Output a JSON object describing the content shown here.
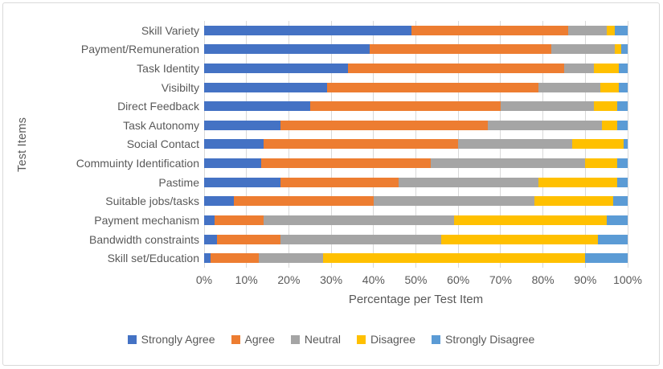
{
  "frame": {
    "background": "#FFFFFF",
    "border_color": "#D9D9D9"
  },
  "chart_data": {
    "type": "bar",
    "orientation": "horizontal",
    "stacked": true,
    "stacked_total": 100,
    "title": "",
    "xlabel": "Percentage per Test Item",
    "ylabel": "Test Items",
    "xlim": [
      0,
      100
    ],
    "x_ticks": [
      "0%",
      "10%",
      "20%",
      "30%",
      "40%",
      "50%",
      "60%",
      "70%",
      "80%",
      "90%",
      "100%"
    ],
    "grid": "vertical",
    "gridline_color": "#D9D9D9",
    "text_color": "#595959",
    "legend_position": "bottom",
    "categories": [
      "Skill Variety",
      "Payment/Remuneration",
      "Task Identity",
      "Visibilty",
      "Direct Feedback",
      "Task Autonomy",
      "Social Contact",
      "Commuinty Identification",
      "Pastime",
      "Suitable jobs/tasks",
      "Payment mechanism",
      "Bandwidth constraints",
      "Skill set/Education"
    ],
    "series": [
      {
        "name": "Strongly Agree",
        "color": "#4472C4",
        "values": [
          49,
          39,
          34,
          29,
          25,
          18,
          14,
          13.5,
          18,
          7,
          2.5,
          3,
          1.5
        ]
      },
      {
        "name": "Agree",
        "color": "#ED7D31",
        "values": [
          37,
          43,
          51,
          50,
          45,
          49,
          46,
          40,
          28,
          33,
          11.5,
          15,
          11.5
        ]
      },
      {
        "name": "Neutral",
        "color": "#A5A5A5",
        "values": [
          9,
          15,
          7,
          14.5,
          22,
          27,
          27,
          36.5,
          33,
          38,
          45,
          38,
          15
        ]
      },
      {
        "name": "Disagree",
        "color": "#FFC000",
        "values": [
          2,
          1.5,
          6,
          4.5,
          5.5,
          3.5,
          12,
          7.5,
          18.5,
          18.5,
          36,
          37,
          62
        ]
      },
      {
        "name": "Strongly Disagree",
        "color": "#5B9BD5",
        "values": [
          3,
          1.5,
          2,
          2,
          2.5,
          2.5,
          1,
          2.5,
          2.5,
          3.5,
          5,
          7,
          10
        ]
      }
    ]
  }
}
